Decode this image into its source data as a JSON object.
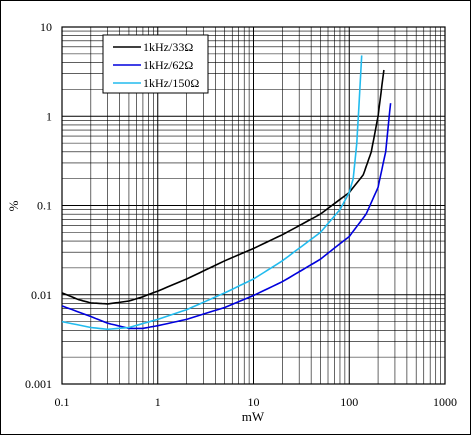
{
  "chart_data": {
    "type": "line",
    "title": "",
    "xlabel": "mW",
    "ylabel": "%",
    "xscale": "log",
    "yscale": "log",
    "xlim": [
      0.1,
      1000
    ],
    "ylim": [
      0.001,
      10
    ],
    "grid": true,
    "legend_position": "top-left",
    "x_tick_labels": [
      "0.1",
      "1",
      "10",
      "100",
      "1000"
    ],
    "y_tick_labels": [
      "0.001",
      "0.01",
      "0.1",
      "1",
      "10"
    ],
    "series": [
      {
        "name": "1kHz/33Ω",
        "color": "#000000",
        "points": [
          [
            0.1,
            0.0105
          ],
          [
            0.15,
            0.0088
          ],
          [
            0.2,
            0.0081
          ],
          [
            0.3,
            0.0079
          ],
          [
            0.5,
            0.0085
          ],
          [
            0.7,
            0.0095
          ],
          [
            1,
            0.011
          ],
          [
            2,
            0.015
          ],
          [
            5,
            0.024
          ],
          [
            10,
            0.033
          ],
          [
            20,
            0.047
          ],
          [
            50,
            0.08
          ],
          [
            100,
            0.14
          ],
          [
            140,
            0.22
          ],
          [
            170,
            0.4
          ],
          [
            200,
            1.0
          ],
          [
            230,
            3.3
          ]
        ]
      },
      {
        "name": "1kHz/62Ω",
        "color": "#0000dd",
        "points": [
          [
            0.1,
            0.0075
          ],
          [
            0.2,
            0.0057
          ],
          [
            0.3,
            0.0048
          ],
          [
            0.5,
            0.0042
          ],
          [
            0.7,
            0.0042
          ],
          [
            1,
            0.0045
          ],
          [
            2,
            0.0053
          ],
          [
            5,
            0.0072
          ],
          [
            10,
            0.0098
          ],
          [
            20,
            0.014
          ],
          [
            50,
            0.025
          ],
          [
            100,
            0.045
          ],
          [
            150,
            0.08
          ],
          [
            200,
            0.16
          ],
          [
            240,
            0.4
          ],
          [
            270,
            1.4
          ]
        ]
      },
      {
        "name": "1kHz/150Ω",
        "color": "#22bbee",
        "points": [
          [
            0.1,
            0.005
          ],
          [
            0.2,
            0.0043
          ],
          [
            0.3,
            0.0041
          ],
          [
            0.5,
            0.0043
          ],
          [
            1,
            0.0053
          ],
          [
            2,
            0.0068
          ],
          [
            5,
            0.0105
          ],
          [
            10,
            0.015
          ],
          [
            20,
            0.024
          ],
          [
            50,
            0.05
          ],
          [
            80,
            0.09
          ],
          [
            100,
            0.14
          ],
          [
            110,
            0.2
          ],
          [
            120,
            0.5
          ],
          [
            135,
            4.8
          ]
        ]
      }
    ]
  }
}
